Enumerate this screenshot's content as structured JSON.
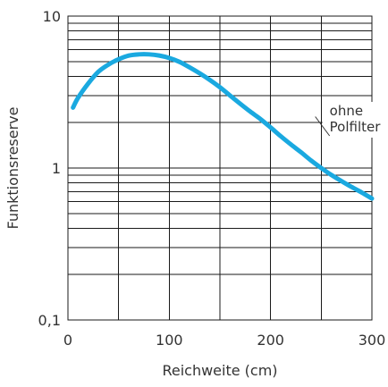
{
  "chart_data": {
    "type": "line",
    "xlabel": "Reichweite (cm)",
    "ylabel": "Funktionsreserve",
    "xlim": [
      0,
      300
    ],
    "ylim": [
      0.1,
      10
    ],
    "yscale": "log",
    "x_ticks": [
      0,
      100,
      200,
      300
    ],
    "x_tick_labels": [
      "0",
      "100",
      "200",
      "300"
    ],
    "y_ticks": [
      0.1,
      1,
      10
    ],
    "y_tick_labels": [
      "0,1",
      "1",
      "10"
    ],
    "x_grid": [
      0,
      50,
      100,
      150,
      200,
      250,
      300
    ],
    "y_grid": [
      0.1,
      0.2,
      0.3,
      0.4,
      0.5,
      0.6,
      0.7,
      0.8,
      0.9,
      1,
      2,
      3,
      4,
      5,
      6,
      7,
      8,
      9,
      10
    ],
    "grid": true,
    "series": [
      {
        "name": "ohne Polfilter",
        "color": "#1aa9e0",
        "x": [
          5,
          10,
          20,
          30,
          40,
          50,
          60,
          70,
          80,
          90,
          100,
          110,
          120,
          130,
          140,
          150,
          160,
          170,
          180,
          190,
          200,
          210,
          220,
          230,
          240,
          250,
          260,
          270,
          280,
          290,
          300
        ],
        "y": [
          2.5,
          2.9,
          3.6,
          4.3,
          4.8,
          5.2,
          5.5,
          5.6,
          5.6,
          5.5,
          5.3,
          5.0,
          4.6,
          4.2,
          3.8,
          3.4,
          3.0,
          2.65,
          2.35,
          2.1,
          1.85,
          1.62,
          1.43,
          1.27,
          1.12,
          1.0,
          0.9,
          0.82,
          0.75,
          0.69,
          0.63
        ]
      }
    ],
    "annotations": [
      {
        "lines": [
          "ohne",
          "Polfilter"
        ],
        "x": 230,
        "y": 2.3
      }
    ]
  }
}
